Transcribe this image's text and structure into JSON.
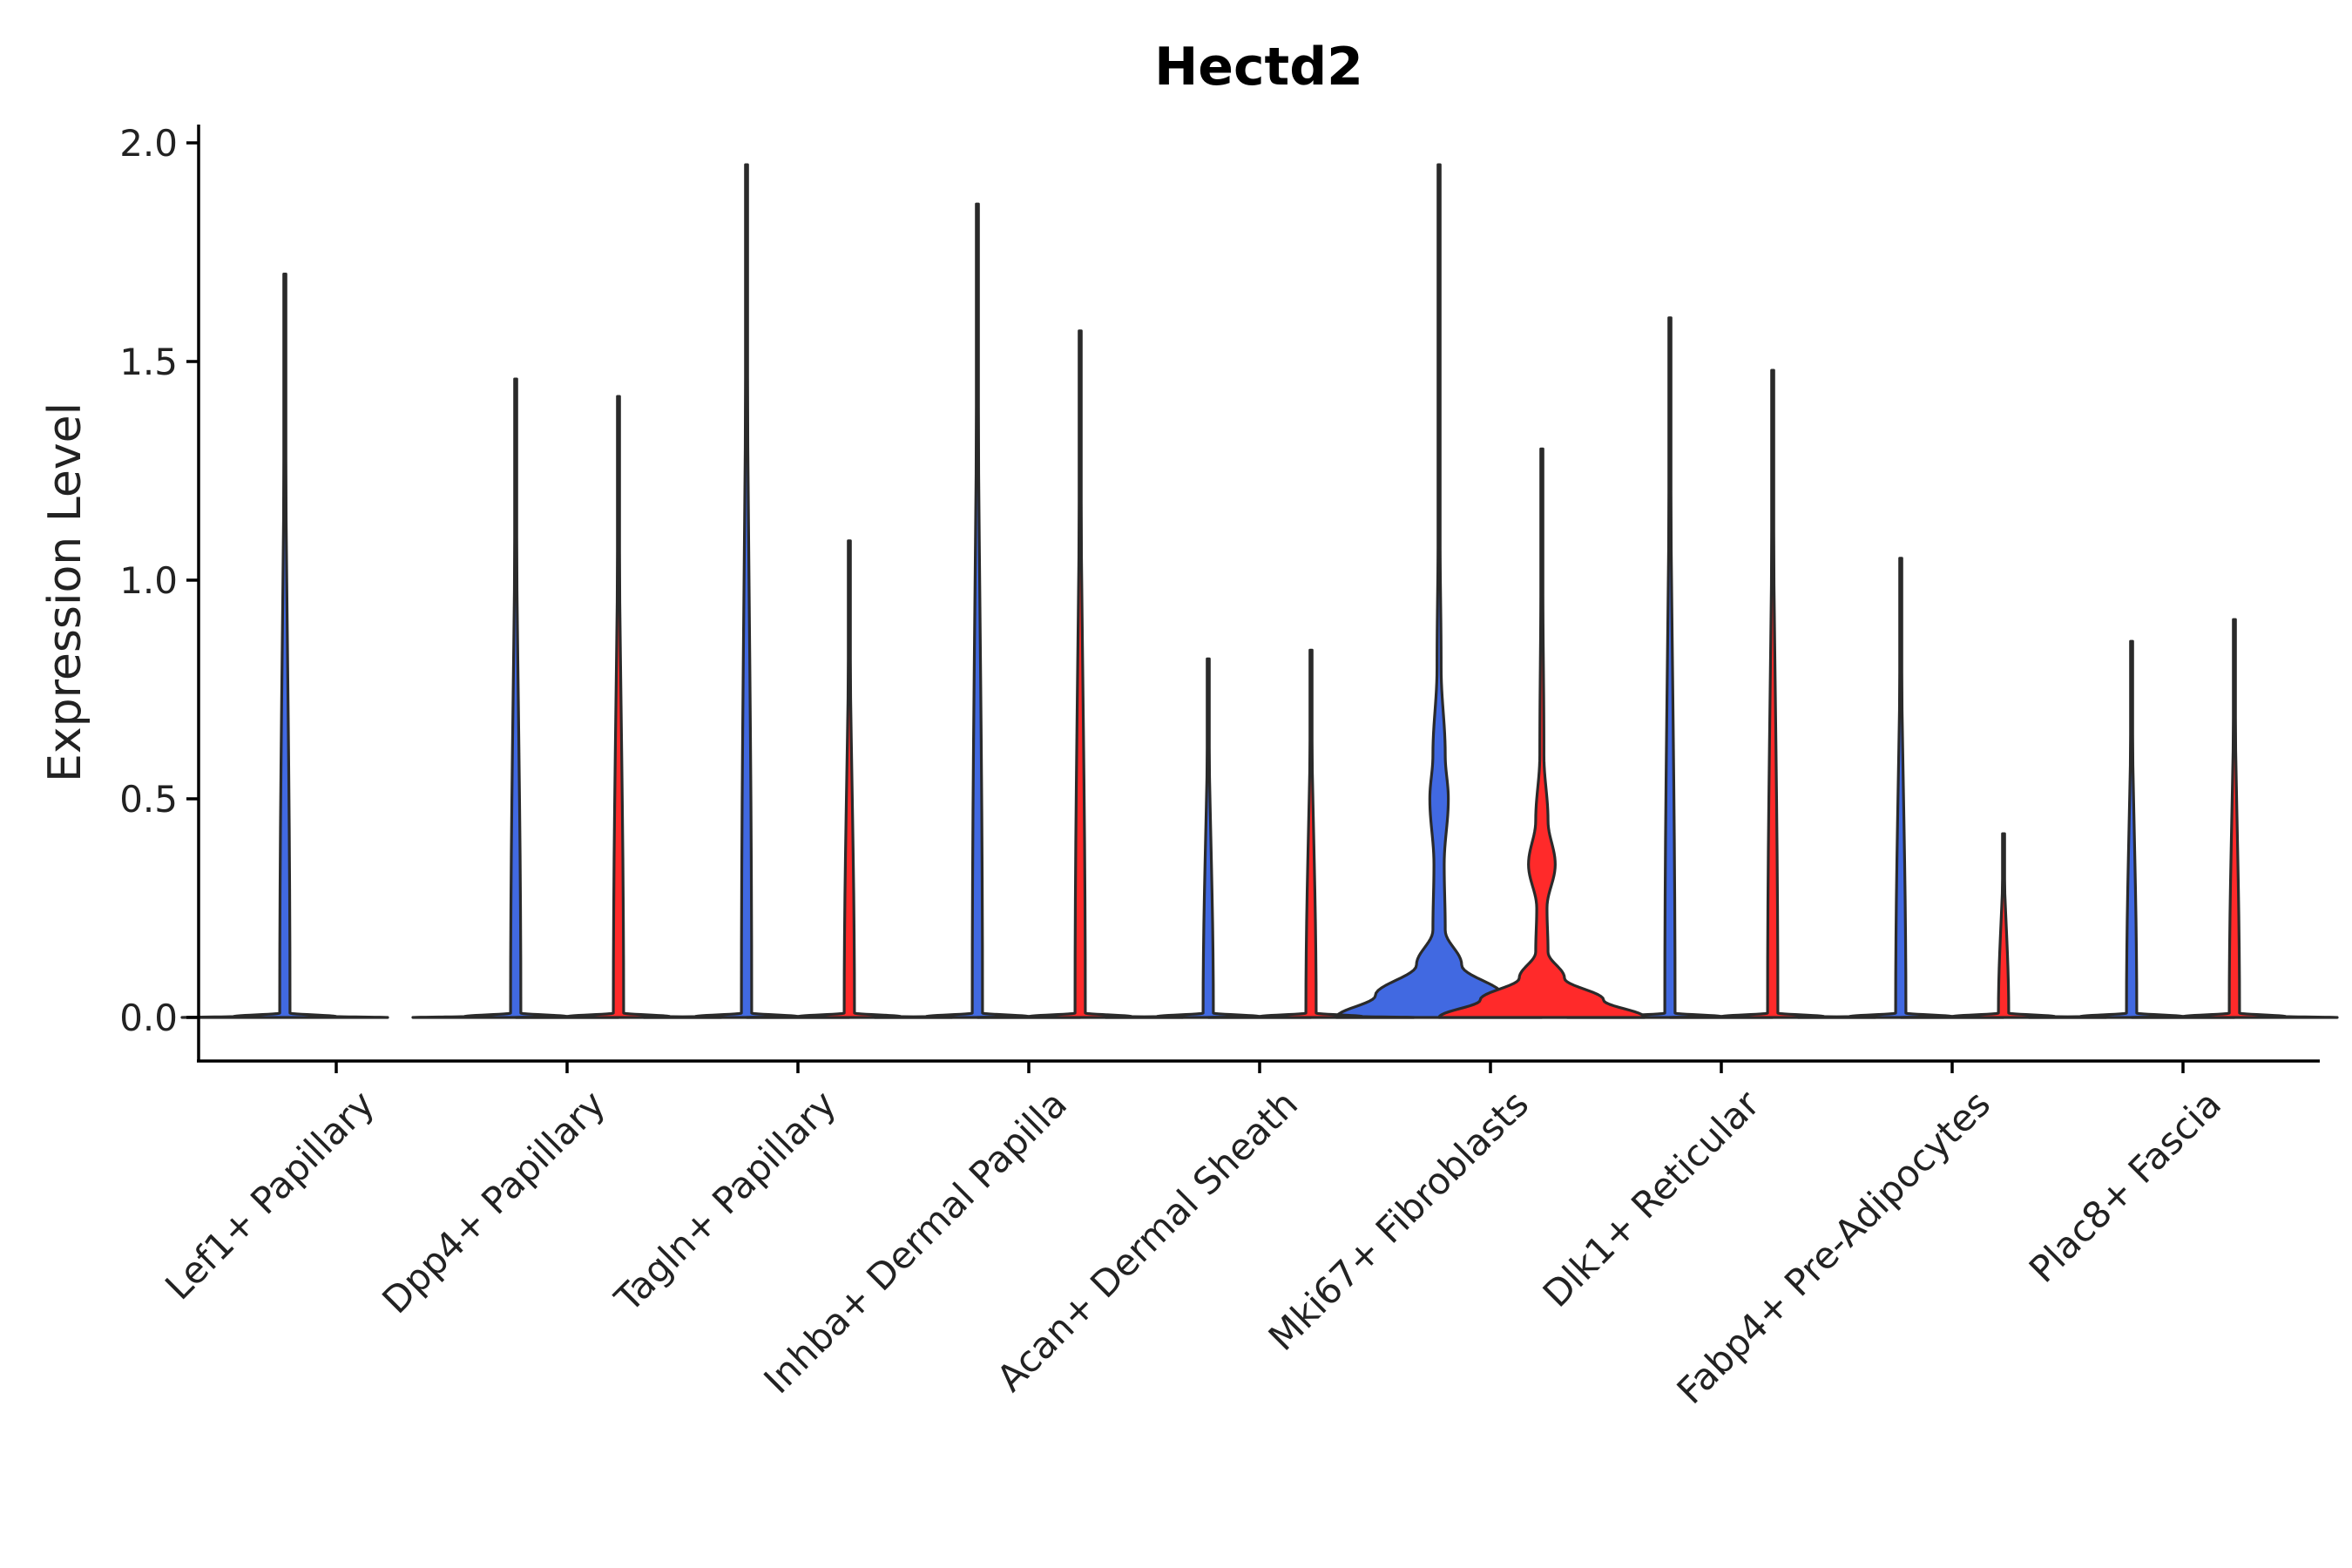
{
  "chart_data": {
    "type": "violin",
    "title": "Hectd2",
    "xlabel": "",
    "ylabel": "Expression Level",
    "ylim": [
      -0.1,
      2.05
    ],
    "yticks": [
      0.0,
      0.5,
      1.0,
      1.5,
      2.0
    ],
    "ytick_labels": [
      "0.0",
      "0.5",
      "1.0",
      "1.5",
      "2.0"
    ],
    "legend": "none",
    "categories": [
      "Lef1+ Papillary",
      "Dpp4+ Papillary",
      "Tagln+ Papillary",
      "Inhba+ Dermal Papilla",
      "Acan+ Dermal Sheath",
      "Mki67+ Fibroblasts",
      "Dlk1+ Reticular",
      "Fabp4+ Pre-Adipocytes",
      "Plac8+ Fascia"
    ],
    "series": [
      {
        "name": "group 1",
        "color": "#4169E1",
        "max_values": [
          1.7,
          1.46,
          1.95,
          1.86,
          0.82,
          1.95,
          1.6,
          1.05,
          0.86
        ],
        "density": [
          [
            [
              0,
              1.0
            ],
            [
              0.002,
              0.5
            ],
            [
              0.01,
              0.05
            ],
            [
              1.7,
              0
            ]
          ],
          [
            [
              0,
              1.0
            ],
            [
              0.002,
              0.5
            ],
            [
              0.01,
              0.05
            ],
            [
              1.46,
              0
            ]
          ],
          [
            [
              0,
              1.0
            ],
            [
              0.002,
              0.5
            ],
            [
              0.01,
              0.05
            ],
            [
              1.95,
              0
            ]
          ],
          [
            [
              0,
              1.0
            ],
            [
              0.002,
              0.5
            ],
            [
              0.01,
              0.05
            ],
            [
              1.86,
              0
            ]
          ],
          [
            [
              0,
              1.0
            ],
            [
              0.002,
              0.5
            ],
            [
              0.01,
              0.05
            ],
            [
              0.82,
              0
            ]
          ],
          [
            [
              0,
              1.0
            ],
            [
              0.05,
              0.62
            ],
            [
              0.12,
              0.22
            ],
            [
              0.2,
              0.06
            ],
            [
              0.35,
              0.05
            ],
            [
              0.5,
              0.09
            ],
            [
              0.6,
              0.06
            ],
            [
              0.8,
              0.02
            ],
            [
              1.1,
              0.01
            ],
            [
              1.95,
              0
            ]
          ],
          [
            [
              0,
              1.0
            ],
            [
              0.002,
              0.5
            ],
            [
              0.01,
              0.05
            ],
            [
              1.6,
              0
            ]
          ],
          [
            [
              0,
              1.0
            ],
            [
              0.002,
              0.5
            ],
            [
              0.01,
              0.05
            ],
            [
              1.05,
              0
            ]
          ],
          [
            [
              0,
              1.0
            ],
            [
              0.002,
              0.5
            ],
            [
              0.01,
              0.05
            ],
            [
              0.86,
              0
            ]
          ]
        ]
      },
      {
        "name": "group 2",
        "color": "#FF2A2A",
        "max_values": [
          null,
          1.42,
          1.09,
          1.57,
          0.84,
          1.3,
          1.48,
          0.42,
          0.91
        ],
        "density": [
          null,
          [
            [
              0,
              1.0
            ],
            [
              0.002,
              0.5
            ],
            [
              0.01,
              0.05
            ],
            [
              1.42,
              0
            ]
          ],
          [
            [
              0,
              1.0
            ],
            [
              0.002,
              0.5
            ],
            [
              0.01,
              0.05
            ],
            [
              1.09,
              0
            ]
          ],
          [
            [
              0,
              1.0
            ],
            [
              0.002,
              0.5
            ],
            [
              0.01,
              0.05
            ],
            [
              1.57,
              0
            ]
          ],
          [
            [
              0,
              1.0
            ],
            [
              0.002,
              0.5
            ],
            [
              0.01,
              0.05
            ],
            [
              0.84,
              0
            ]
          ],
          [
            [
              0,
              1.0
            ],
            [
              0.04,
              0.6
            ],
            [
              0.09,
              0.22
            ],
            [
              0.15,
              0.06
            ],
            [
              0.25,
              0.05
            ],
            [
              0.35,
              0.13
            ],
            [
              0.45,
              0.06
            ],
            [
              0.6,
              0.02
            ],
            [
              1.0,
              0.01
            ],
            [
              1.3,
              0
            ]
          ],
          [
            [
              0,
              1.0
            ],
            [
              0.002,
              0.5
            ],
            [
              0.01,
              0.05
            ],
            [
              1.48,
              0
            ]
          ],
          [
            [
              0,
              1.0
            ],
            [
              0.002,
              0.5
            ],
            [
              0.01,
              0.05
            ],
            [
              0.42,
              0
            ]
          ],
          [
            [
              0,
              1.0
            ],
            [
              0.002,
              0.5
            ],
            [
              0.01,
              0.05
            ],
            [
              0.91,
              0
            ]
          ]
        ]
      }
    ]
  }
}
